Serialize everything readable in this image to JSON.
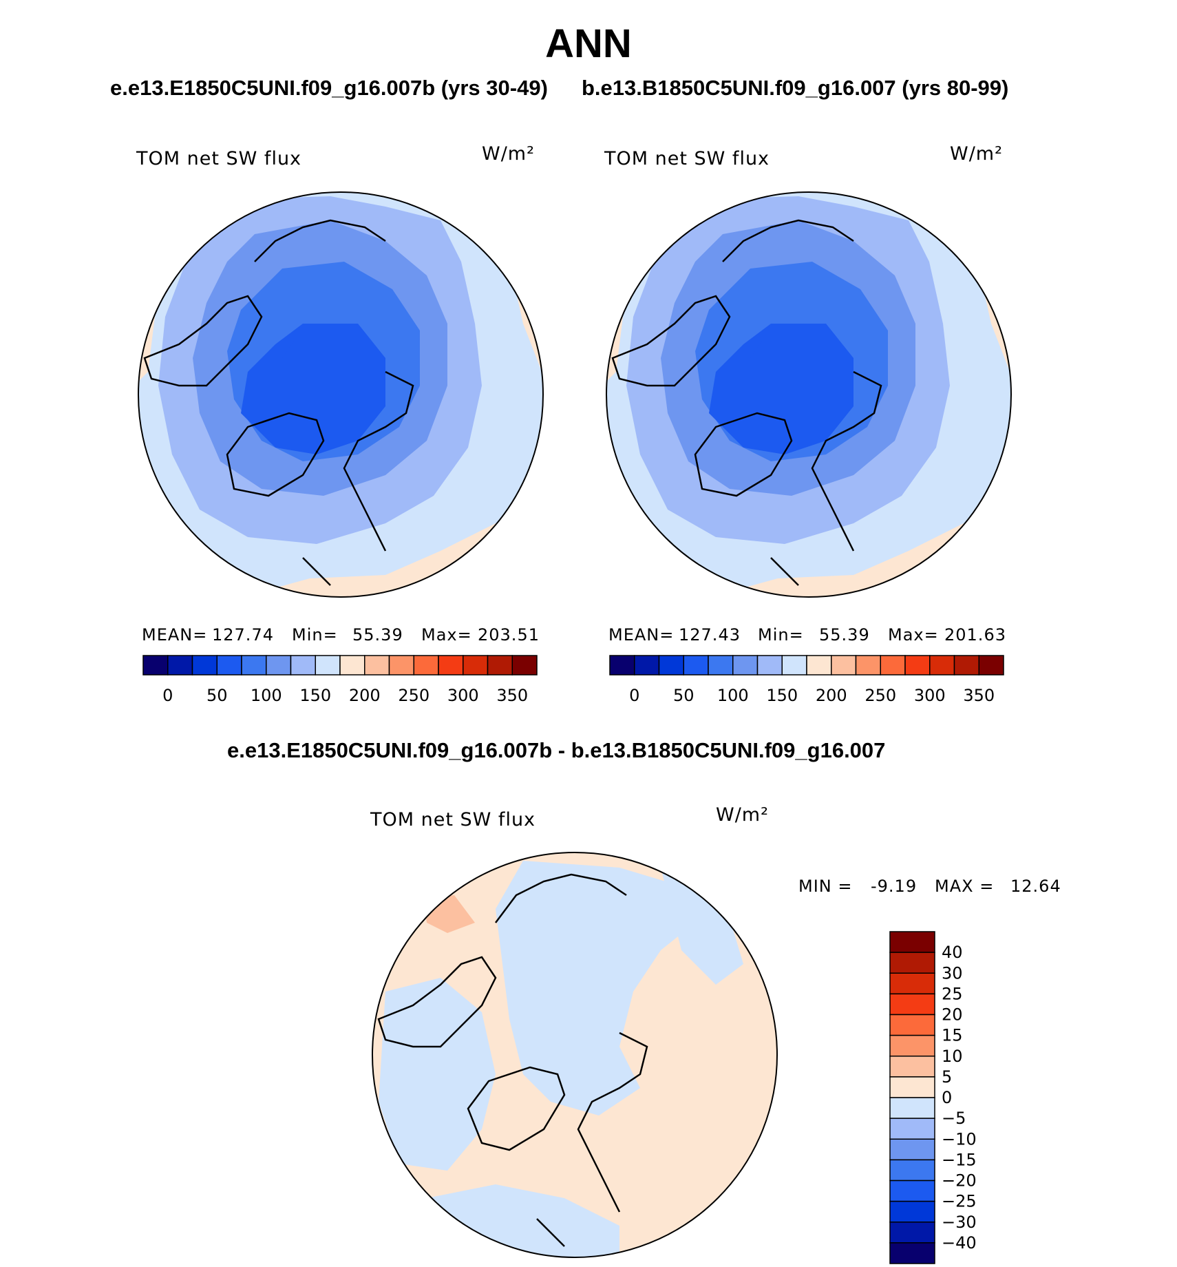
{
  "title": "ANN",
  "top_subtitle": {
    "left": "e.e13.E1850C5UNI.f09_g16.007b (yrs 30-49)",
    "right": "b.e13.B1850C5UNI.f09_g16.007 (yrs 80-99)"
  },
  "colors": {
    "abs_scale": [
      "#08006e",
      "#0018a8",
      "#0038d8",
      "#1c5af0",
      "#3c78f0",
      "#6e96f0",
      "#a0baf8",
      "#d0e4fc",
      "#fde6d2",
      "#fcc0a0",
      "#fc9468",
      "#fc6a3a",
      "#f43c14",
      "#d82c08",
      "#b01a04",
      "#7a0000"
    ],
    "diff_scale": [
      "#08006e",
      "#0018a8",
      "#0038d8",
      "#1c5af0",
      "#3c78f0",
      "#6e96f0",
      "#a0baf8",
      "#d0e4fc",
      "#fde6d2",
      "#fcc0a0",
      "#fc9468",
      "#fc6a3a",
      "#f43c14",
      "#d82c08",
      "#b01a04",
      "#7a0000"
    ]
  },
  "panels": [
    {
      "id": "panel-left",
      "variable": "TOM net SW flux",
      "units": "W/m²",
      "stats": {
        "mean_label": "MEAN=",
        "mean": "127.74",
        "min_label": "Min=",
        "min": "55.39",
        "max_label": "Max=",
        "max": "203.51"
      },
      "colorbar_ticks": [
        "0",
        "50",
        "100",
        "150",
        "200",
        "250",
        "300",
        "350"
      ]
    },
    {
      "id": "panel-right",
      "variable": "TOM net SW flux",
      "units": "W/m²",
      "stats": {
        "mean_label": "MEAN=",
        "mean": "127.43",
        "min_label": "Min=",
        "min": "55.39",
        "max_label": "Max=",
        "max": "201.63"
      },
      "colorbar_ticks": [
        "0",
        "50",
        "100",
        "150",
        "200",
        "250",
        "300",
        "350"
      ]
    }
  ],
  "difference": {
    "title": "e.e13.E1850C5UNI.f09_g16.007b - b.e13.B1850C5UNI.f09_g16.007",
    "variable": "TOM net SW flux",
    "units": "W/m²",
    "min_label": "MIN =",
    "min": "-9.19",
    "max_label": "MAX =",
    "max": "12.64",
    "colorbar_ticks": [
      "40",
      "30",
      "25",
      "20",
      "15",
      "10",
      "5",
      "0",
      "−5",
      "−10",
      "−15",
      "−20",
      "−25",
      "−30",
      "−40"
    ]
  }
}
